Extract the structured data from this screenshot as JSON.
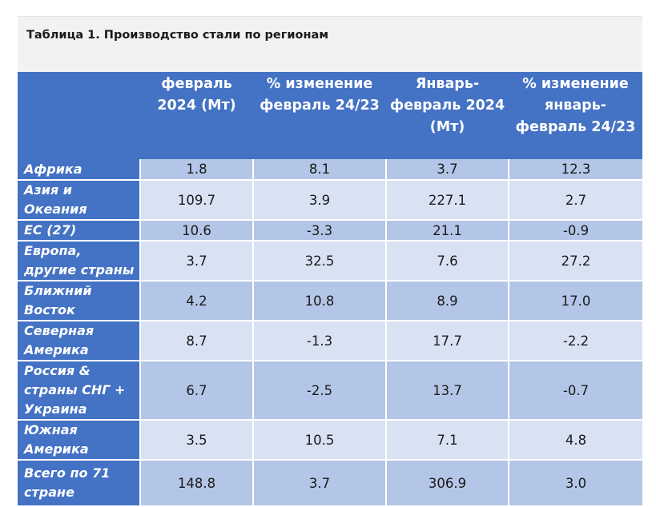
{
  "table": {
    "title": "Таблица 1. Производство стали по регионам",
    "headers": [
      "",
      "февраль 2024 (Мт)",
      "% изменение февраль 24/23",
      "Январь-февраль 2024 (Мт)",
      "% изменение январь-февраль 24/23"
    ],
    "rows": [
      {
        "region": "Африка",
        "values": [
          "1.8",
          "8.1",
          "3.7",
          "12.3"
        ]
      },
      {
        "region": "Азия и Океания",
        "values": [
          "109.7",
          "3.9",
          "227.1",
          "2.7"
        ]
      },
      {
        "region": "ЕС (27)",
        "values": [
          "10.6",
          "-3.3",
          "21.1",
          "-0.9"
        ]
      },
      {
        "region": "Европа, другие страны",
        "values": [
          "3.7",
          "32.5",
          "7.6",
          "27.2"
        ]
      },
      {
        "region": "Ближний Восток",
        "values": [
          "4.2",
          "10.8",
          "8.9",
          "17.0"
        ]
      },
      {
        "region": "Северная Америка",
        "values": [
          "8.7",
          "-1.3",
          "17.7",
          "-2.2"
        ]
      },
      {
        "region": "Россия & страны СНГ + Украина",
        "values": [
          "6.7",
          "-2.5",
          "13.7",
          "-0.7"
        ]
      },
      {
        "region": "Южная Америка",
        "values": [
          "3.5",
          "10.5",
          "7.1",
          "4.8"
        ]
      },
      {
        "region": "Всего по 71 стране",
        "values": [
          "148.8",
          "3.7",
          "306.9",
          "3.0"
        ]
      }
    ]
  }
}
